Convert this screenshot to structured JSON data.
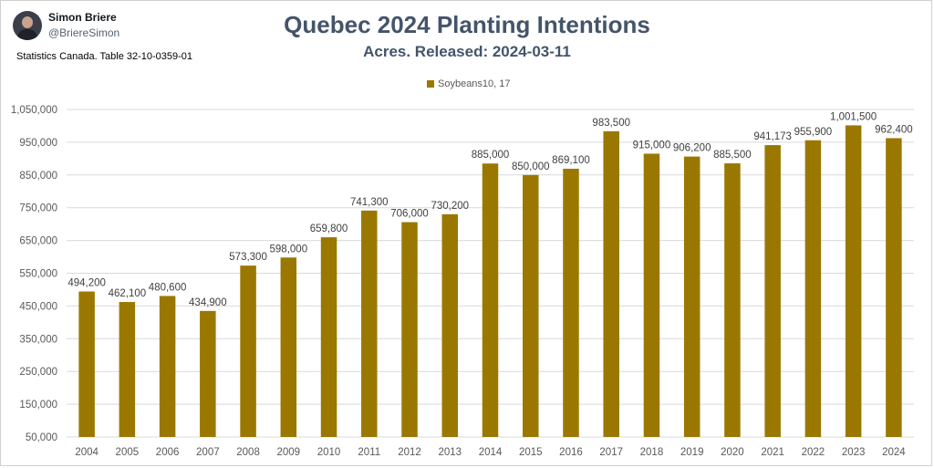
{
  "header": {
    "user_name": "Simon Briere",
    "user_handle": "@BriereSimon",
    "source": "Statistics Canada. Table 32-10-0359-01"
  },
  "colors": {
    "bar": "#9a7800",
    "title": "#44546a",
    "grid": "#d9d9d9"
  },
  "chart_data": {
    "type": "bar",
    "title": "Quebec 2024 Planting Intentions",
    "subtitle": "Acres. Released: 2024-03-11",
    "legend_position": "top-center",
    "grid": true,
    "categories": [
      "2004",
      "2005",
      "2006",
      "2007",
      "2008",
      "2009",
      "2010",
      "2011",
      "2012",
      "2013",
      "2014",
      "2015",
      "2016",
      "2017",
      "2018",
      "2019",
      "2020",
      "2021",
      "2022",
      "2023",
      "2024"
    ],
    "series": [
      {
        "name": "Soybeans10, 17",
        "values": [
          494200,
          462100,
          480600,
          434900,
          573300,
          598000,
          659800,
          741300,
          706000,
          730200,
          885000,
          850000,
          869100,
          983500,
          915000,
          906200,
          885500,
          941173,
          955900,
          1001500,
          962400
        ],
        "labels": [
          "494,200",
          "462,100",
          "480,600",
          "434,900",
          "573,300",
          "598,000",
          "659,800",
          "741,300",
          "706,000",
          "730,200",
          "885,000",
          "850,000",
          "869,100",
          "983,500",
          "915,000",
          "906,200",
          "885,500",
          "941,173",
          "955,900",
          "1,001,500",
          "962,400"
        ]
      }
    ],
    "ylim": [
      50000,
      1050000
    ],
    "yticks": [
      "50,000",
      "150,000",
      "250,000",
      "350,000",
      "450,000",
      "550,000",
      "650,000",
      "750,000",
      "850,000",
      "950,000",
      "1,050,000"
    ],
    "yticks_values": [
      50000,
      150000,
      250000,
      350000,
      450000,
      550000,
      650000,
      750000,
      850000,
      950000,
      1050000
    ]
  }
}
